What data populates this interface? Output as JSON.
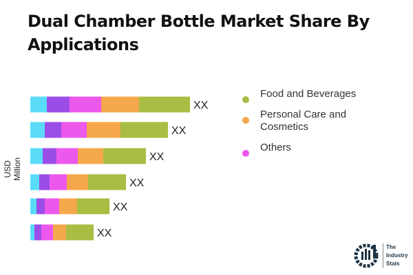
{
  "title": "Dual Chamber Bottle Market Share By Applications",
  "chart_data": {
    "type": "bar",
    "orientation": "horizontal",
    "stacked": true,
    "title": "Dual Chamber Bottle Market Share By Applications",
    "ylabel": "USD Million",
    "grid": false,
    "legend_placement": "right",
    "data_labels": [
      "XX",
      "XX",
      "XX",
      "XX",
      "XX",
      "XX"
    ],
    "series": [
      {
        "color": "#5ADCF8",
        "values": [
          24,
          21,
          18,
          13,
          9,
          6
        ]
      },
      {
        "color": "#9B4DE8",
        "values": [
          33,
          24,
          20,
          15,
          12,
          10
        ]
      },
      {
        "name": "Others",
        "color": "#EC58EC",
        "values": [
          46,
          37,
          31,
          25,
          21,
          17
        ]
      },
      {
        "name": "Personal Care and Cosmetics",
        "color": "#F5A84B",
        "values": [
          55,
          49,
          37,
          31,
          26,
          19
        ]
      },
      {
        "name": "Food and Beverages",
        "color": "#A8BD43",
        "values": [
          74,
          69,
          62,
          55,
          47,
          40
        ]
      }
    ]
  },
  "legend": [
    {
      "label": "Food and Beverages",
      "color": "#A8BD43"
    },
    {
      "label": "Personal Care and Cosmetics",
      "color": "#F5A84B"
    },
    {
      "label": "Others",
      "color": "#EC58EC"
    }
  ],
  "logo": {
    "text": "The Industry Stats",
    "line1": "The",
    "line2": "Industry",
    "line3": "Stats"
  }
}
